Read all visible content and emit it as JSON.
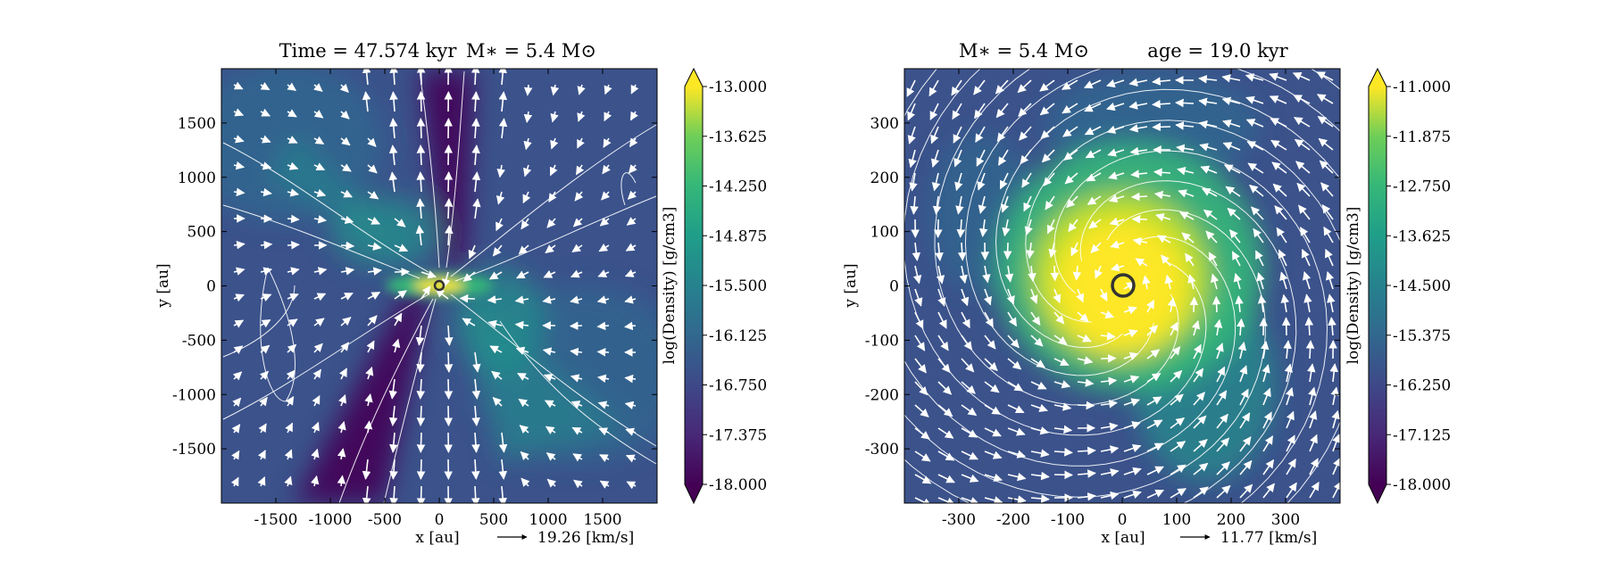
{
  "chart_data": [
    {
      "type": "heatmap",
      "title": "Time = 47.574 kyr    M$_*$ = 5.4 M$_\\odot$",
      "title_parts": {
        "left": "Time = 47.574 kyr",
        "right": "M∗ = 5.4 M⊙"
      },
      "xlabel": "x [au]",
      "ylabel": "y [au]",
      "xlim": [
        -2000,
        2000
      ],
      "ylim": [
        -2000,
        2000
      ],
      "xticks": [
        -1500,
        -1000,
        -500,
        0,
        500,
        1000,
        1500
      ],
      "yticks": [
        -1500,
        -1000,
        -500,
        0,
        500,
        1000,
        1500
      ],
      "xtick_labels": [
        "-1500",
        "-1000",
        "-500",
        "0",
        "500",
        "1000",
        "1500"
      ],
      "ytick_labels": [
        "-1500",
        "-1000",
        "-500",
        "0",
        "500",
        "1000",
        "1500"
      ],
      "vector_key": {
        "label": "19.26 [km/s]"
      },
      "colorbar": {
        "label": "log(Density) [g/cm3]",
        "min": -18.0,
        "max": -13.0,
        "extend": "both",
        "colormap": "viridis",
        "ticks": [
          "-13.000",
          "-13.625",
          "-14.250",
          "-14.875",
          "-15.500",
          "-16.125",
          "-16.750",
          "-17.375",
          "-18.000"
        ]
      },
      "sink_marker": {
        "x": 0,
        "y": 0
      }
    },
    {
      "type": "heatmap",
      "title_parts": {
        "left": "M∗ = 5.4 M⊙",
        "right": "age = 19.0 kyr"
      },
      "xlabel": "x [au]",
      "ylabel": "y [au]",
      "xlim": [
        -400,
        400
      ],
      "ylim": [
        -400,
        400
      ],
      "xticks": [
        -300,
        -200,
        -100,
        0,
        100,
        200,
        300
      ],
      "yticks": [
        -300,
        -200,
        -100,
        0,
        100,
        200,
        300
      ],
      "xtick_labels": [
        "-300",
        "-200",
        "-100",
        "0",
        "100",
        "200",
        "300"
      ],
      "ytick_labels": [
        "-300",
        "-200",
        "-100",
        "0",
        "100",
        "200",
        "300"
      ],
      "vector_key": {
        "label": "11.77 [km/s]"
      },
      "colorbar": {
        "label": "log(Density) [g/cm3]",
        "min": -18.0,
        "max": -11.0,
        "extend": "both",
        "colormap": "viridis",
        "ticks": [
          "-11.000",
          "-11.875",
          "-12.750",
          "-13.625",
          "-14.500",
          "-15.375",
          "-16.250",
          "-17.125",
          "-18.000"
        ]
      },
      "sink_marker": {
        "x": 0,
        "y": 0
      }
    }
  ]
}
